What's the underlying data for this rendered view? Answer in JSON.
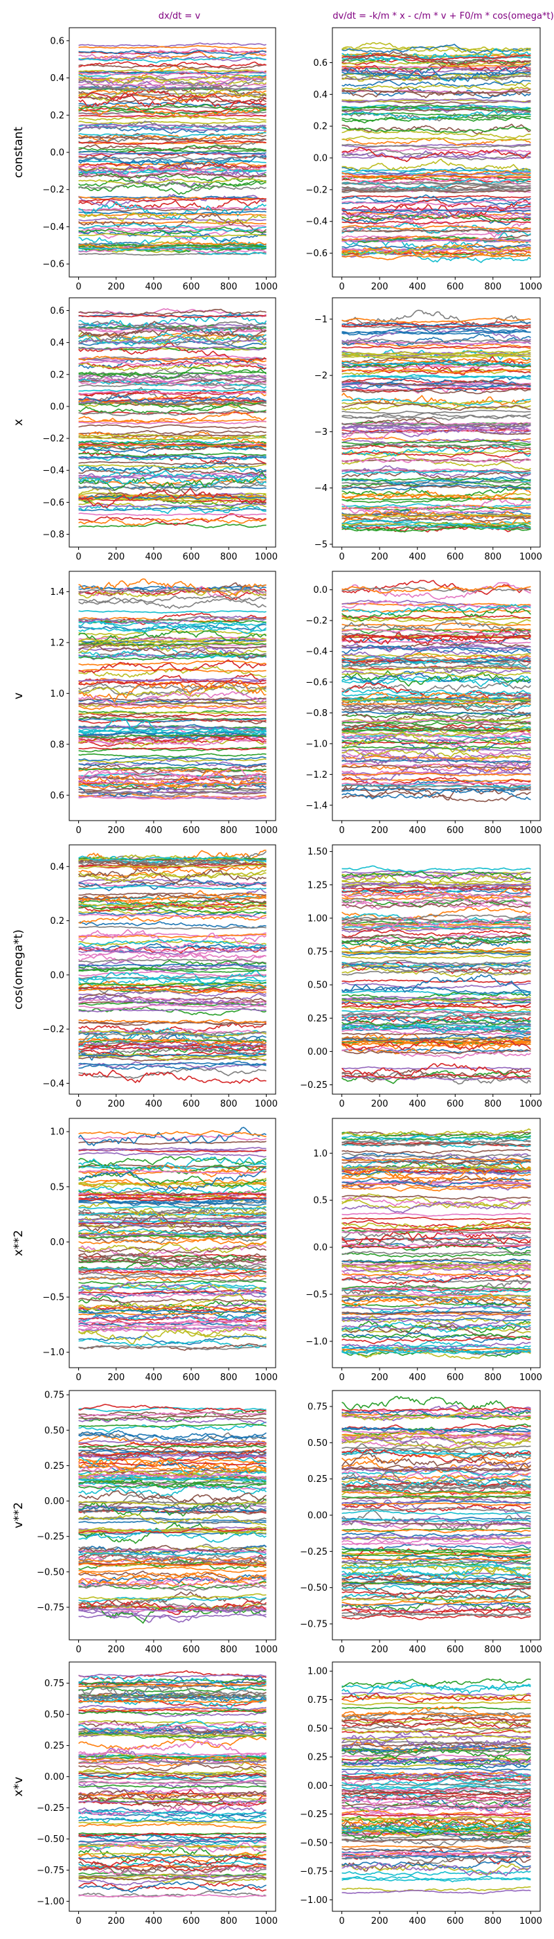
{
  "figure": {
    "column_titles": [
      "dx/dt = v",
      "dv/dt = -k/m * x - c/m * v + F0/m * cos(omega*t)"
    ],
    "row_labels": [
      "constant",
      "x",
      "v",
      "cos(omega*t)",
      "x**2",
      "v**2",
      "x*v"
    ]
  },
  "colors": {
    "title": "#800080",
    "series_cycle": [
      "#1f77b4",
      "#ff7f0e",
      "#2ca02c",
      "#d62728",
      "#9467bd",
      "#8c564b",
      "#e377c2",
      "#7f7f7f",
      "#bcbd22",
      "#17becf"
    ]
  },
  "chart_data": [
    {
      "type": "line",
      "row": "constant",
      "column": "dx/dt = v",
      "x_range": [
        0,
        1000
      ],
      "xticks": [
        0,
        200,
        400,
        600,
        800,
        1000
      ],
      "ylim": [
        -0.67,
        0.67
      ],
      "yticks": [
        -0.6,
        -0.4,
        -0.2,
        0.0,
        0.2,
        0.4,
        0.6
      ],
      "y_span": [
        -0.58,
        0.62
      ],
      "approx_series_count": 120,
      "grid": false
    },
    {
      "type": "line",
      "row": "constant",
      "column": "dv/dt = -k/m * x - c/m * v + F0/m * cos(omega*t)",
      "x_range": [
        0,
        1000
      ],
      "xticks": [
        0,
        200,
        400,
        600,
        800,
        1000
      ],
      "ylim": [
        -0.75,
        0.82
      ],
      "yticks": [
        -0.6,
        -0.4,
        -0.2,
        0.0,
        0.2,
        0.4,
        0.6
      ],
      "y_span": [
        -0.68,
        0.74
      ],
      "approx_series_count": 120,
      "grid": false
    },
    {
      "type": "line",
      "row": "x",
      "column": "dx/dt = v",
      "x_range": [
        0,
        1000
      ],
      "xticks": [
        0,
        200,
        400,
        600,
        800,
        1000
      ],
      "ylim": [
        -0.88,
        0.68
      ],
      "yticks": [
        -0.8,
        -0.6,
        -0.4,
        -0.2,
        0.0,
        0.2,
        0.4,
        0.6
      ],
      "y_span": [
        -0.82,
        0.64
      ],
      "approx_series_count": 120,
      "grid": false
    },
    {
      "type": "line",
      "row": "x",
      "column": "dv/dt = -k/m * x - c/m * v + F0/m * cos(omega*t)",
      "x_range": [
        0,
        1000
      ],
      "xticks": [
        0,
        200,
        400,
        600,
        800,
        1000
      ],
      "ylim": [
        -5.05,
        -0.62
      ],
      "yticks": [
        -5,
        -4,
        -3,
        -2,
        -1
      ],
      "y_span": [
        -4.85,
        -0.82
      ],
      "approx_series_count": 120,
      "grid": false
    },
    {
      "type": "line",
      "row": "v",
      "column": "dx/dt = v",
      "x_range": [
        0,
        1000
      ],
      "xticks": [
        0,
        200,
        400,
        600,
        800,
        1000
      ],
      "ylim": [
        0.5,
        1.48
      ],
      "yticks": [
        0.6,
        0.8,
        1.0,
        1.2,
        1.4
      ],
      "y_span": [
        0.53,
        1.45
      ],
      "approx_series_count": 120,
      "grid": false
    },
    {
      "type": "line",
      "row": "v",
      "column": "dv/dt = -k/m * x - c/m * v + F0/m * cos(omega*t)",
      "x_range": [
        0,
        1000
      ],
      "xticks": [
        0,
        200,
        400,
        600,
        800,
        1000
      ],
      "ylim": [
        -1.5,
        0.12
      ],
      "yticks": [
        -1.4,
        -1.2,
        -1.0,
        -0.8,
        -0.6,
        -0.4,
        -0.2,
        0.0
      ],
      "y_span": [
        -1.42,
        0.06
      ],
      "approx_series_count": 120,
      "grid": false
    },
    {
      "type": "line",
      "row": "cos(omega*t)",
      "column": "dx/dt = v",
      "x_range": [
        0,
        1000
      ],
      "xticks": [
        0,
        200,
        400,
        600,
        800,
        1000
      ],
      "ylim": [
        -0.44,
        0.48
      ],
      "yticks": [
        -0.4,
        -0.2,
        0.0,
        0.2,
        0.4
      ],
      "y_span": [
        -0.4,
        0.46
      ],
      "approx_series_count": 120,
      "grid": false
    },
    {
      "type": "line",
      "row": "cos(omega*t)",
      "column": "dv/dt = -k/m * x - c/m * v + F0/m * cos(omega*t)",
      "x_range": [
        0,
        1000
      ],
      "xticks": [
        0,
        200,
        400,
        600,
        800,
        1000
      ],
      "ylim": [
        -0.32,
        1.55
      ],
      "yticks": [
        -0.25,
        0.0,
        0.25,
        0.5,
        0.75,
        1.0,
        1.25,
        1.5
      ],
      "y_span": [
        -0.26,
        1.42
      ],
      "approx_series_count": 120,
      "grid": false
    },
    {
      "type": "line",
      "row": "x**2",
      "column": "dx/dt = v",
      "x_range": [
        0,
        1000
      ],
      "xticks": [
        0,
        200,
        400,
        600,
        800,
        1000
      ],
      "ylim": [
        -1.14,
        1.12
      ],
      "yticks": [
        -1.0,
        -0.5,
        0.0,
        0.5,
        1.0
      ],
      "y_span": [
        -1.07,
        1.07
      ],
      "approx_series_count": 120,
      "grid": false
    },
    {
      "type": "line",
      "row": "x**2",
      "column": "dv/dt = -k/m * x - c/m * v + F0/m * cos(omega*t)",
      "x_range": [
        0,
        1000
      ],
      "xticks": [
        0,
        200,
        400,
        600,
        800,
        1000
      ],
      "ylim": [
        -1.28,
        1.37
      ],
      "yticks": [
        -1.0,
        -0.5,
        0.0,
        0.5,
        1.0
      ],
      "y_span": [
        -1.2,
        1.28
      ],
      "approx_series_count": 120,
      "grid": false
    },
    {
      "type": "line",
      "row": "v**2",
      "column": "dx/dt = v",
      "x_range": [
        0,
        1000
      ],
      "xticks": [
        0,
        200,
        400,
        600,
        800,
        1000
      ],
      "ylim": [
        -0.98,
        0.78
      ],
      "yticks": [
        -0.75,
        -0.5,
        -0.25,
        0.0,
        0.25,
        0.5,
        0.75
      ],
      "y_span": [
        -0.9,
        0.72
      ],
      "approx_series_count": 120,
      "grid": false
    },
    {
      "type": "line",
      "row": "v**2",
      "column": "dv/dt = -k/m * x - c/m * v + F0/m * cos(omega*t)",
      "x_range": [
        0,
        1000
      ],
      "xticks": [
        0,
        200,
        400,
        600,
        800,
        1000
      ],
      "ylim": [
        -0.86,
        0.86
      ],
      "yticks": [
        -0.75,
        -0.5,
        -0.25,
        0.0,
        0.25,
        0.5,
        0.75
      ],
      "y_span": [
        -0.79,
        0.82
      ],
      "approx_series_count": 120,
      "grid": false
    },
    {
      "type": "line",
      "row": "x*v",
      "column": "dx/dt = v",
      "x_range": [
        0,
        1000
      ],
      "xticks": [
        0,
        200,
        400,
        600,
        800,
        1000
      ],
      "ylim": [
        -1.08,
        0.92
      ],
      "yticks": [
        -1.0,
        -0.75,
        -0.5,
        -0.25,
        0.0,
        0.25,
        0.5,
        0.75
      ],
      "y_span": [
        -1.02,
        0.87
      ],
      "approx_series_count": 120,
      "grid": false
    },
    {
      "type": "line",
      "row": "x*v",
      "column": "dv/dt = -k/m * x - c/m * v + F0/m * cos(omega*t)",
      "x_range": [
        0,
        1000
      ],
      "xticks": [
        0,
        200,
        400,
        600,
        800,
        1000
      ],
      "ylim": [
        -1.1,
        1.08
      ],
      "yticks": [
        -1.0,
        -0.75,
        -0.5,
        -0.25,
        0.0,
        0.25,
        0.5,
        0.75,
        1.0
      ],
      "y_span": [
        -1.02,
        0.98
      ],
      "approx_series_count": 120,
      "grid": false
    }
  ]
}
